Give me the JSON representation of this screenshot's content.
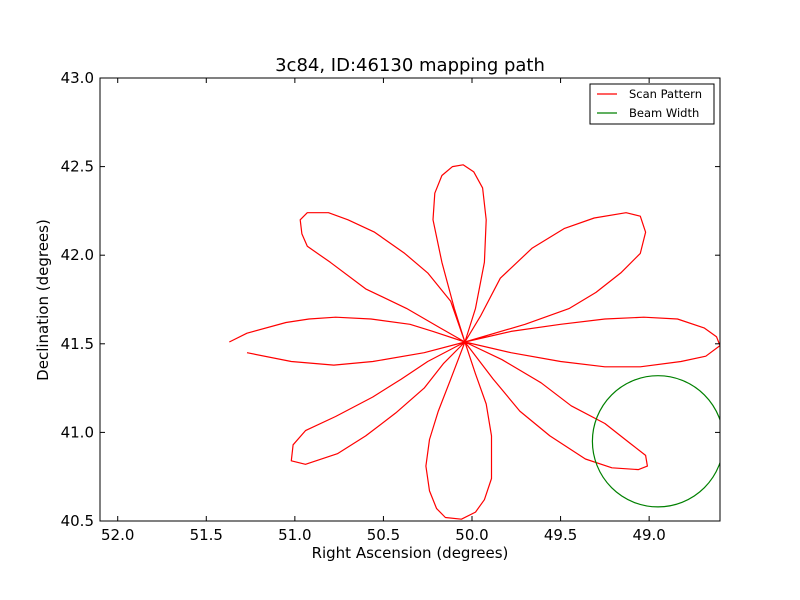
{
  "chart_data": {
    "type": "line",
    "title": "3c84, ID:46130 mapping path",
    "xlabel": "Right Ascension (degrees)",
    "ylabel": "Declination (degrees)",
    "xlim": [
      52.1,
      48.6
    ],
    "ylim": [
      40.5,
      43.0
    ],
    "x_reversed": true,
    "xticks": [
      52.0,
      51.5,
      51.0,
      50.5,
      50.0,
      49.5,
      49.0
    ],
    "xtick_labels": [
      "52.0",
      "51.5",
      "51.0",
      "50.5",
      "50.0",
      "49.5",
      "49.0"
    ],
    "yticks": [
      40.5,
      41.0,
      41.5,
      42.0,
      42.5,
      43.0
    ],
    "ytick_labels": [
      "40.5",
      "41.0",
      "41.5",
      "42.0",
      "42.5",
      "43.0"
    ],
    "grid": false,
    "legend_position": "top-right",
    "series": [
      {
        "name": "Scan Pattern",
        "color": "#ff0000",
        "points": [
          [
            51.37,
            41.51
          ],
          [
            51.27,
            41.56
          ],
          [
            51.05,
            41.62
          ],
          [
            50.92,
            41.64
          ],
          [
            50.77,
            41.65
          ],
          [
            50.57,
            41.64
          ],
          [
            50.35,
            41.61
          ],
          [
            50.22,
            41.57
          ],
          [
            50.04,
            41.51
          ],
          [
            50.18,
            41.59
          ],
          [
            50.37,
            41.7
          ],
          [
            50.6,
            41.81
          ],
          [
            50.8,
            41.96
          ],
          [
            50.93,
            42.05
          ],
          [
            50.96,
            42.12
          ],
          [
            50.97,
            42.2
          ],
          [
            50.93,
            42.24
          ],
          [
            50.81,
            42.24
          ],
          [
            50.7,
            42.2
          ],
          [
            50.55,
            42.13
          ],
          [
            50.38,
            42.01
          ],
          [
            50.25,
            41.9
          ],
          [
            50.12,
            41.74
          ],
          [
            50.04,
            41.51
          ],
          [
            50.1,
            41.7
          ],
          [
            50.17,
            41.96
          ],
          [
            50.22,
            42.2
          ],
          [
            50.21,
            42.35
          ],
          [
            50.17,
            42.45
          ],
          [
            50.11,
            42.5
          ],
          [
            50.05,
            42.51
          ],
          [
            49.99,
            42.47
          ],
          [
            49.94,
            42.38
          ],
          [
            49.92,
            42.2
          ],
          [
            49.93,
            41.96
          ],
          [
            49.98,
            41.7
          ],
          [
            50.04,
            41.51
          ],
          [
            49.95,
            41.66
          ],
          [
            49.84,
            41.87
          ],
          [
            49.66,
            42.04
          ],
          [
            49.48,
            42.15
          ],
          [
            49.31,
            42.21
          ],
          [
            49.13,
            42.24
          ],
          [
            49.05,
            42.22
          ],
          [
            49.02,
            42.13
          ],
          [
            49.05,
            42.01
          ],
          [
            49.16,
            41.9
          ],
          [
            49.3,
            41.79
          ],
          [
            49.45,
            41.7
          ],
          [
            49.7,
            41.61
          ],
          [
            50.04,
            41.51
          ],
          [
            49.78,
            41.57
          ],
          [
            49.5,
            41.61
          ],
          [
            49.25,
            41.64
          ],
          [
            49.03,
            41.65
          ],
          [
            48.84,
            41.64
          ],
          [
            48.69,
            41.59
          ],
          [
            48.62,
            41.54
          ],
          [
            48.6,
            41.49
          ],
          [
            48.68,
            41.43
          ],
          [
            48.82,
            41.4
          ],
          [
            49.05,
            41.37
          ],
          [
            49.25,
            41.37
          ],
          [
            49.5,
            41.4
          ],
          [
            49.78,
            41.45
          ],
          [
            50.04,
            41.51
          ],
          [
            49.83,
            41.41
          ],
          [
            49.61,
            41.28
          ],
          [
            49.44,
            41.15
          ],
          [
            49.25,
            41.05
          ],
          [
            49.11,
            40.94
          ],
          [
            49.02,
            40.87
          ],
          [
            49.01,
            40.81
          ],
          [
            49.06,
            40.79
          ],
          [
            49.21,
            40.8
          ],
          [
            49.36,
            40.85
          ],
          [
            49.56,
            40.98
          ],
          [
            49.73,
            41.12
          ],
          [
            49.88,
            41.3
          ],
          [
            50.04,
            41.51
          ],
          [
            49.98,
            41.33
          ],
          [
            49.92,
            41.16
          ],
          [
            49.89,
            40.98
          ],
          [
            49.89,
            40.74
          ],
          [
            49.93,
            40.62
          ],
          [
            49.98,
            40.55
          ],
          [
            50.06,
            40.51
          ],
          [
            50.15,
            40.52
          ],
          [
            50.2,
            40.57
          ],
          [
            50.24,
            40.67
          ],
          [
            50.26,
            40.81
          ],
          [
            50.24,
            40.96
          ],
          [
            50.19,
            41.12
          ],
          [
            50.12,
            41.3
          ],
          [
            50.04,
            41.51
          ],
          [
            50.16,
            41.39
          ],
          [
            50.27,
            41.25
          ],
          [
            50.43,
            41.11
          ],
          [
            50.6,
            40.98
          ],
          [
            50.76,
            40.88
          ],
          [
            50.94,
            40.82
          ],
          [
            51.02,
            40.84
          ],
          [
            51.01,
            40.93
          ],
          [
            50.94,
            41.01
          ],
          [
            50.77,
            41.09
          ],
          [
            50.56,
            41.2
          ],
          [
            50.4,
            41.3
          ],
          [
            50.25,
            41.4
          ],
          [
            50.04,
            41.51
          ],
          [
            50.27,
            41.45
          ],
          [
            50.56,
            41.4
          ],
          [
            50.78,
            41.38
          ],
          [
            51.02,
            41.4
          ],
          [
            51.27,
            41.45
          ]
        ]
      },
      {
        "name": "Beam Width",
        "color": "#008000",
        "shape": "circle",
        "center": [
          48.95,
          40.95
        ],
        "radius_y": 0.37
      }
    ]
  }
}
